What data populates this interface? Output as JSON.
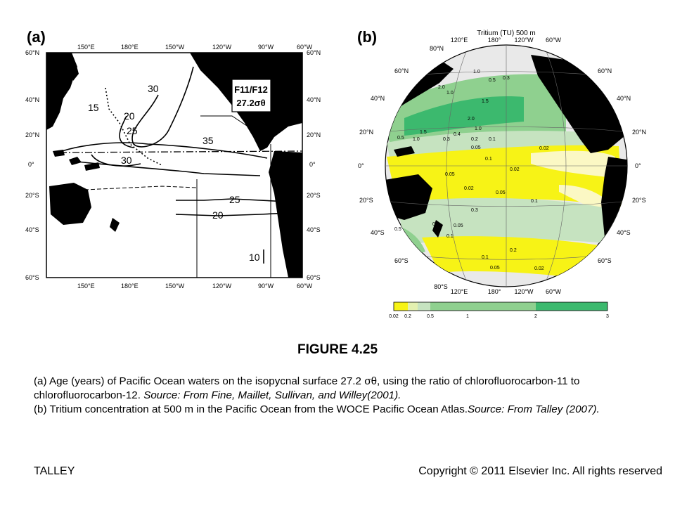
{
  "panel_a": {
    "label": "(a)",
    "top_ticks": [
      "150°E",
      "180°E",
      "150°W",
      "120°W",
      "90°W",
      "60°W"
    ],
    "bottom_ticks": [
      "150°E",
      "180°E",
      "150°W",
      "120°W",
      "90°W",
      "60°W"
    ],
    "left_lat": [
      "60°N",
      "40°N",
      "20°N",
      "0°",
      "20°S",
      "40°S",
      "60°S"
    ],
    "right_lat": [
      "60°N",
      "40°N",
      "20°N",
      "0°",
      "20°S",
      "40°S",
      "60°S"
    ],
    "box_line1": "F11/F12",
    "box_line2": "27.2σθ",
    "contour_labels": [
      "15",
      "20",
      "25",
      "30",
      "35",
      "30",
      "25",
      "20",
      "10"
    ]
  },
  "panel_b": {
    "label": "(b)",
    "title": "Tritium (TU) 500 m",
    "top_lon": [
      "120°E",
      "180°",
      "120°W",
      "60°W"
    ],
    "bottom_lon": [
      "120°E",
      "180°",
      "120°W",
      "60°W"
    ],
    "top_pole": "80°N",
    "bottom_pole": "80°S",
    "left_lat": [
      "60°N",
      "40°N",
      "20°N",
      "0°",
      "20°S",
      "40°S",
      "60°S"
    ],
    "right_lat": [
      "60°N",
      "40°N",
      "20°N",
      "0°",
      "20°S",
      "40°S",
      "60°S"
    ],
    "map_labels": [
      "1.0",
      "0.5",
      "0.3",
      "2.0",
      "1.0",
      "1.5",
      "2.0",
      "1.0",
      "1.5",
      "1.0",
      "0.5",
      "0.4",
      "0.3",
      "0.2",
      "0.1",
      "0.05",
      "0.02",
      "0.1",
      "0.05",
      "0.02",
      "0.05",
      "0.1",
      "0.02",
      "0.05",
      "0.1",
      "0.3",
      "0.4",
      "0.5",
      "0.2",
      "0.1",
      "0.05",
      "0.02"
    ],
    "legend_ticks": [
      "0.02",
      "0.2",
      "0.5",
      "1",
      "2",
      "3"
    ],
    "legend_colors": [
      "#f7f316",
      "#e3f0b0",
      "#c6e3c0",
      "#8fd08f",
      "#3cb96e"
    ]
  },
  "figure_title": "FIGURE 4.25",
  "caption": {
    "p1": "(a) Age (years) of Pacific Ocean waters on the isopycnal surface 27.2 σθ, using the ratio of chlorofluorocarbon-11 to chlorofluorocarbon-12. ",
    "p1_source": "Source: From Fine, Maillet, Sullivan, and Willey(2001).",
    "p2": "(b) Tritium concentration at 500 m in the Pacific Ocean from the WOCE Pacific Ocean Atlas.",
    "p2_source": "Source: From Talley (2007)."
  },
  "footer": {
    "left": "TALLEY",
    "right": "Copyright © 2011 Elsevier Inc. All rights reserved"
  }
}
